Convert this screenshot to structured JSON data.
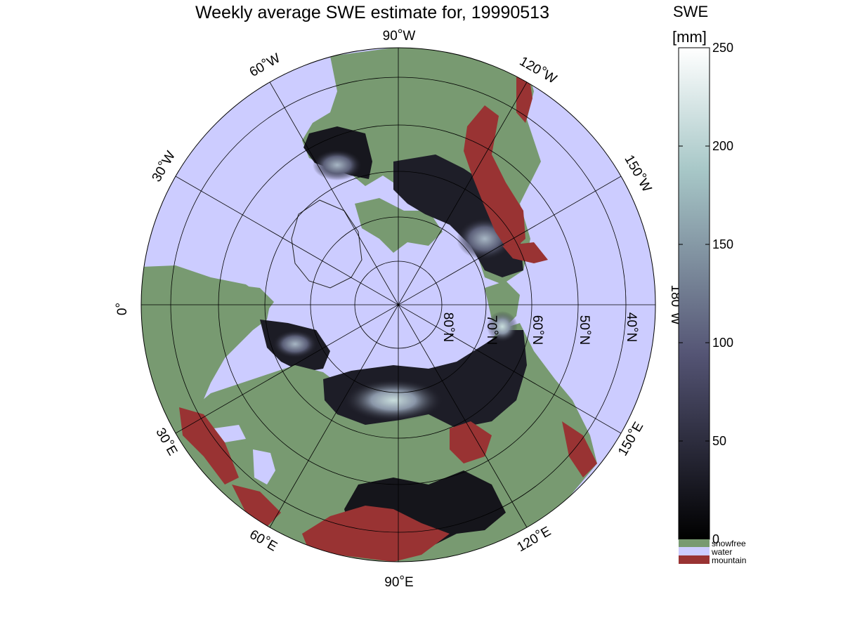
{
  "title": "Weekly average SWE estimate for, 19990513",
  "colorbar": {
    "title": "SWE",
    "unit": "[mm]",
    "ticks": [
      "0",
      "50",
      "100",
      "150",
      "200",
      "250"
    ],
    "tick_values": [
      0,
      50,
      100,
      150,
      200,
      250
    ],
    "range": [
      0,
      250
    ],
    "colormap": "bone",
    "categories": [
      {
        "label": "snowfree",
        "color": "#789a71"
      },
      {
        "label": "water",
        "color": "#ccccff"
      },
      {
        "label": "mountain",
        "color": "#993333"
      }
    ]
  },
  "map": {
    "projection": "north polar stereographic",
    "colors": {
      "land": "#789a71",
      "water": "#ccccff",
      "mountain": "#993333",
      "snow_dark": "#16161c"
    },
    "meridian_labels": [
      {
        "text": "90°W",
        "lon": -90
      },
      {
        "text": "120°W",
        "lon": -120
      },
      {
        "text": "150°W",
        "lon": -150
      },
      {
        "text": "180°W",
        "lon": 180
      },
      {
        "text": "150°E",
        "lon": 150
      },
      {
        "text": "120°E",
        "lon": 120
      },
      {
        "text": "90°E",
        "lon": 90
      },
      {
        "text": "60°E",
        "lon": 60
      },
      {
        "text": "30°E",
        "lon": 30
      },
      {
        "text": "0°",
        "lon": 0
      },
      {
        "text": "30°W",
        "lon": -30
      },
      {
        "text": "60°W",
        "lon": -60
      }
    ],
    "parallel_labels": [
      {
        "text": "80°N",
        "lat": 80
      },
      {
        "text": "70°N",
        "lat": 70
      },
      {
        "text": "60°N",
        "lat": 60
      },
      {
        "text": "50°N",
        "lat": 50
      },
      {
        "text": "40°N",
        "lat": 40
      }
    ]
  }
}
